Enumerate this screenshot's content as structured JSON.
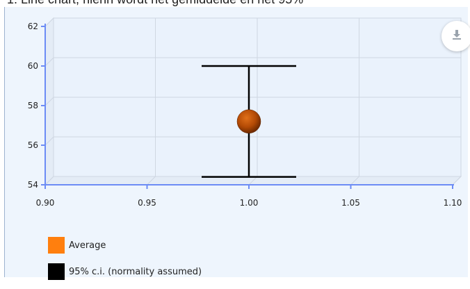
{
  "caption": "1. Line chart, hierin wordt het gemiddelde en het 95%",
  "download_icon": "download-icon",
  "chart_data": {
    "type": "scatter",
    "title": "",
    "xlabel": "",
    "ylabel": "",
    "xlim": [
      0.9,
      1.1
    ],
    "ylim": [
      54,
      62
    ],
    "x_ticks": [
      "0.90",
      "0.95",
      "1.00",
      "1.05",
      "1.10"
    ],
    "y_ticks": [
      "54",
      "56",
      "58",
      "60",
      "62"
    ],
    "grid": true,
    "legend_position": "bottom-left",
    "series": [
      {
        "name": "Average",
        "color": "#ff7f0e",
        "points": [
          {
            "x": 1.0,
            "y": 57.2
          }
        ]
      },
      {
        "name": "95% c.i. (normality assumed)",
        "color": "#000000",
        "intervals": [
          {
            "x": 1.0,
            "low": 54.4,
            "high": 60.0
          }
        ]
      }
    ]
  },
  "legend": {
    "items": [
      {
        "label": "Average",
        "color": "#ff7f0e"
      },
      {
        "label": "95% c.i. (normality assumed)",
        "color": "#000000"
      }
    ]
  }
}
